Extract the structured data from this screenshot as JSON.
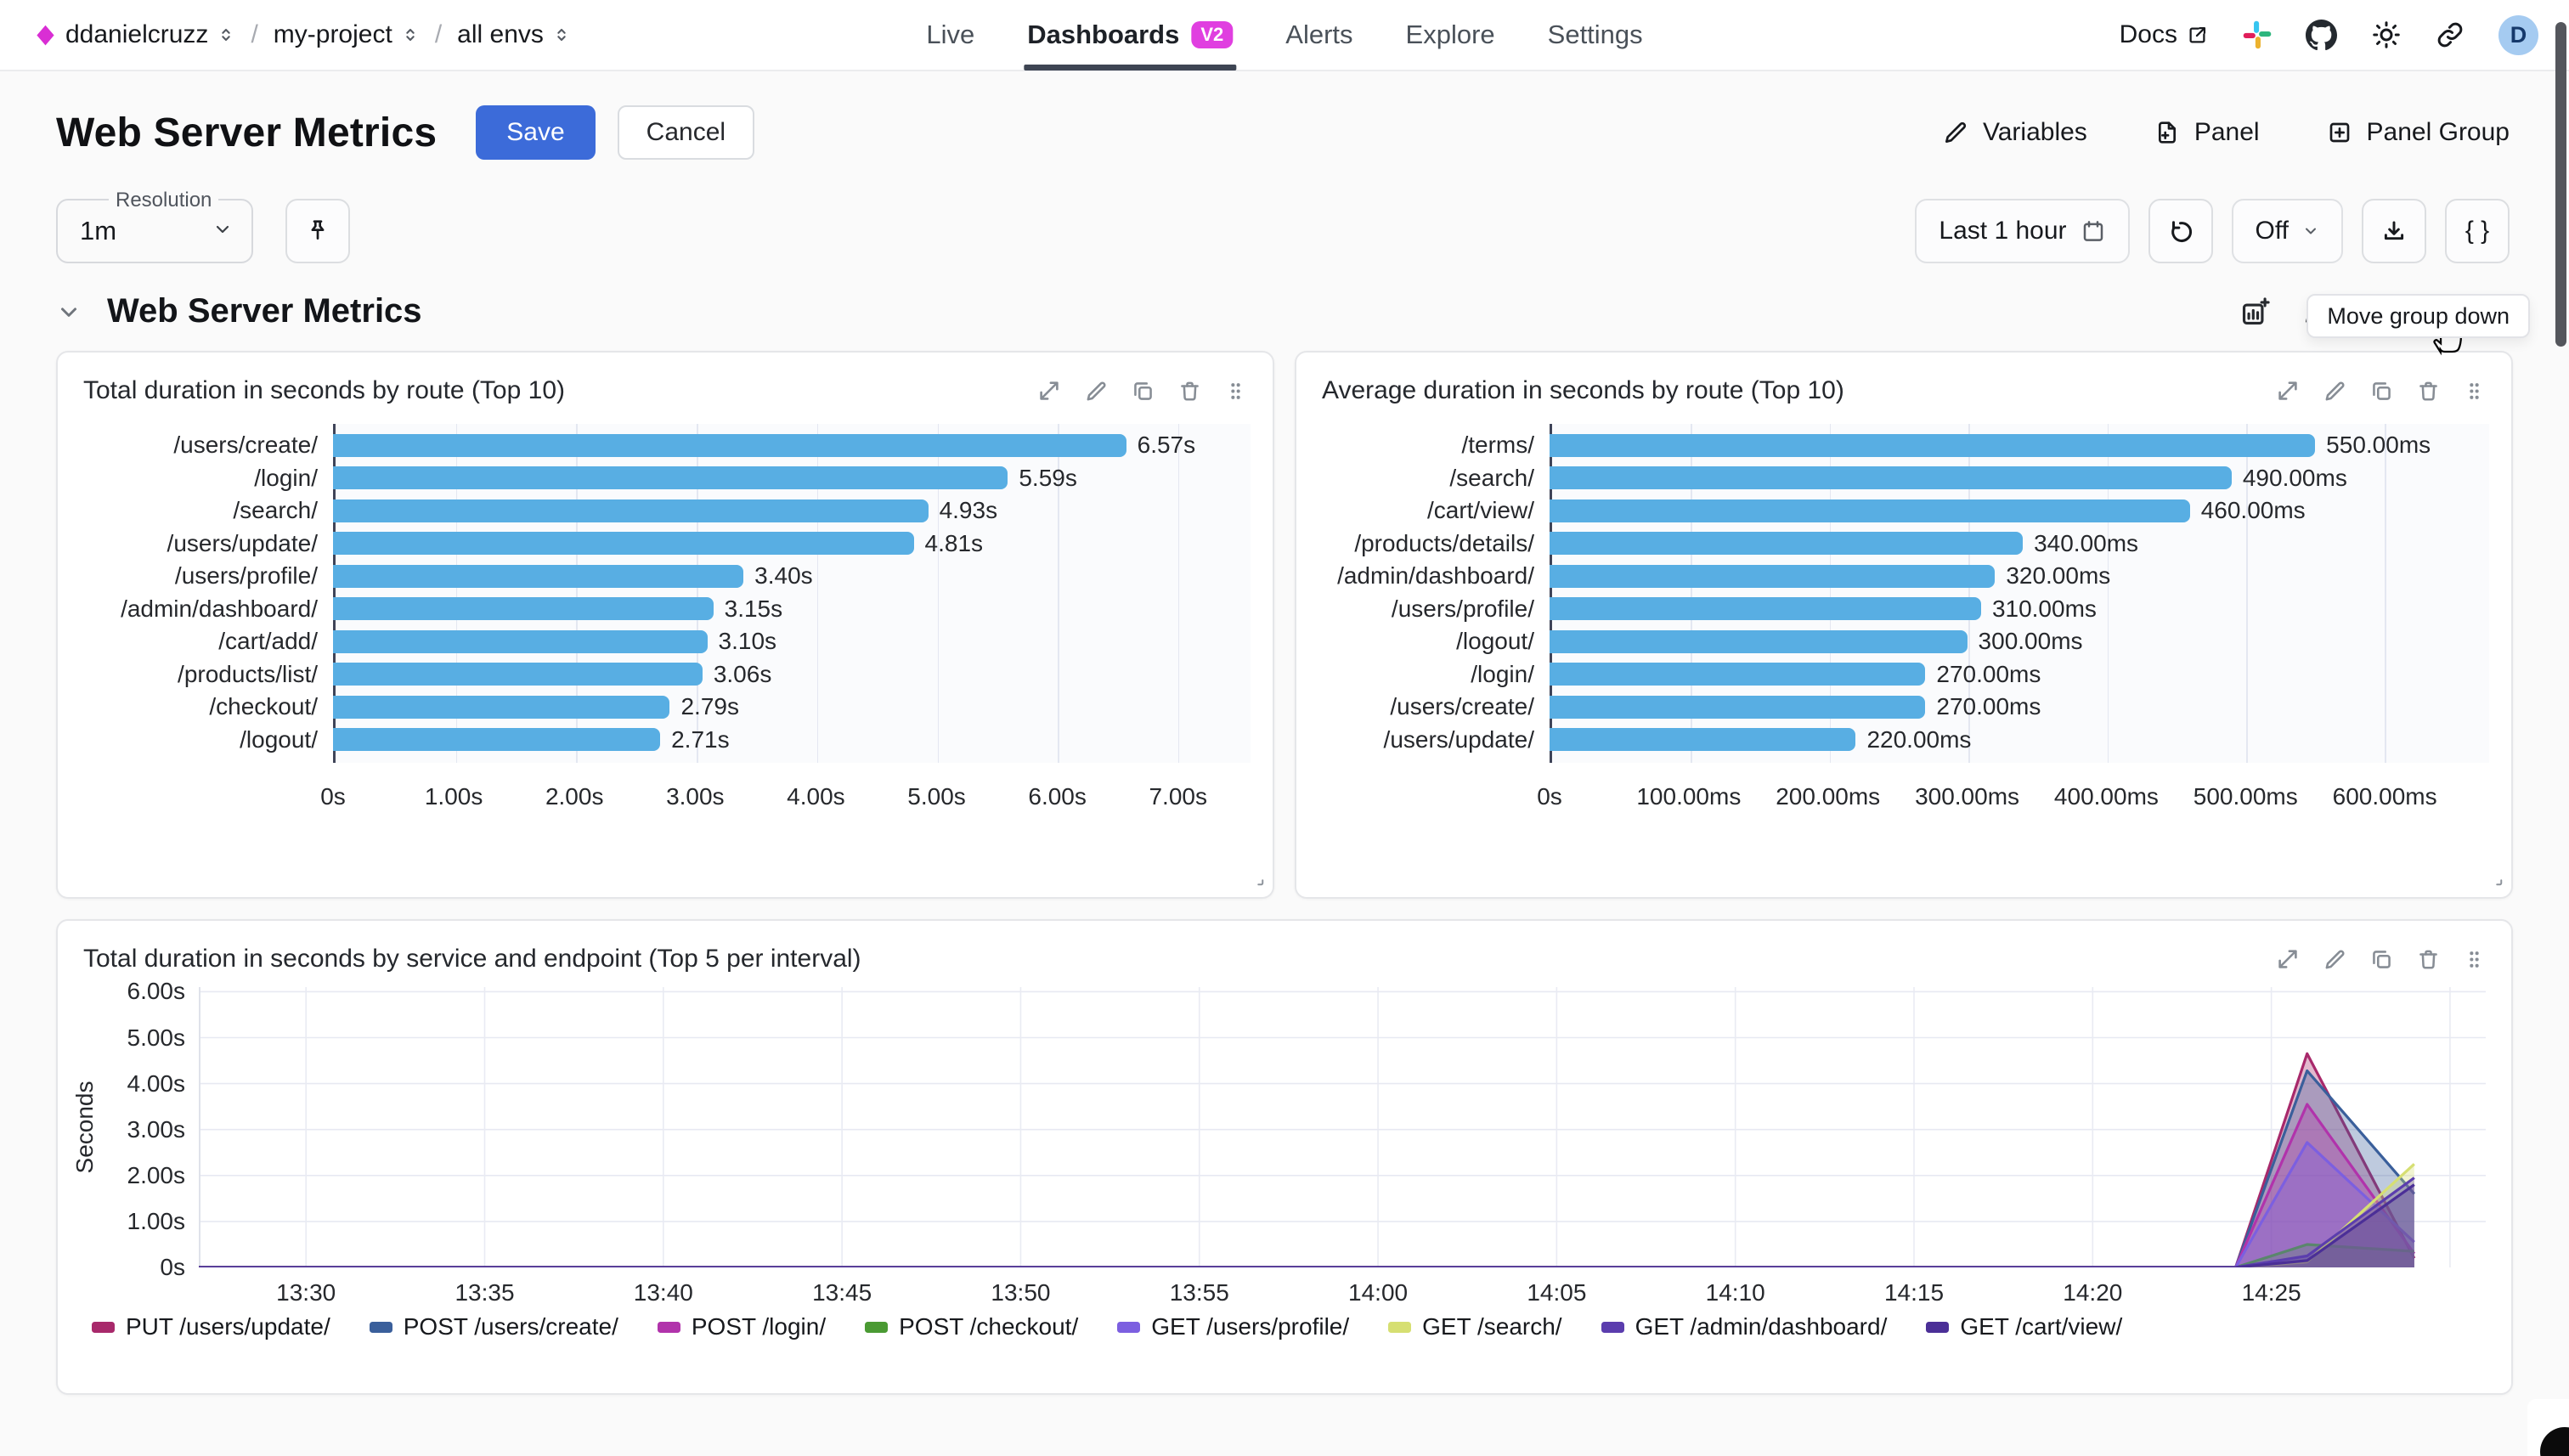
{
  "topbar": {
    "breadcrumb": [
      {
        "label": "ddanielcruzz"
      },
      {
        "label": "my-project"
      },
      {
        "label": "all envs"
      }
    ],
    "nav": [
      {
        "label": "Live",
        "active": false
      },
      {
        "label": "Dashboards",
        "active": true,
        "badge": "V2"
      },
      {
        "label": "Alerts",
        "active": false
      },
      {
        "label": "Explore",
        "active": false
      },
      {
        "label": "Settings",
        "active": false
      }
    ],
    "docs_label": "Docs",
    "avatar_initial": "D"
  },
  "header": {
    "title": "Web Server Metrics",
    "save_label": "Save",
    "cancel_label": "Cancel",
    "actions": [
      {
        "label": "Variables"
      },
      {
        "label": "Panel"
      },
      {
        "label": "Panel Group"
      }
    ]
  },
  "controls": {
    "resolution_label": "Resolution",
    "resolution_value": "1m",
    "time_range": "Last 1 hour",
    "refresh_value": "Off",
    "braces_label": "{ }",
    "tooltip": "Move group down"
  },
  "group": {
    "title": "Web Server Metrics"
  },
  "panels": [
    {
      "title": "Total duration in seconds by route (Top 10)"
    },
    {
      "title": "Average duration in seconds by route (Top 10)"
    },
    {
      "title": "Total duration in seconds by service and endpoint (Top 5 per interval)"
    }
  ],
  "colors": {
    "accent_blue": "#3c6bd9",
    "brand_magenta": "#d92ed4",
    "badge_magenta": "#e03fe0",
    "bar_blue": "#58aee3"
  },
  "chart_data": [
    {
      "type": "bar",
      "orientation": "horizontal",
      "title": "Total duration in seconds by route (Top 10)",
      "categories": [
        "/users/create/",
        "/login/",
        "/search/",
        "/users/update/",
        "/users/profile/",
        "/admin/dashboard/",
        "/cart/add/",
        "/products/list/",
        "/checkout/",
        "/logout/"
      ],
      "values": [
        6.57,
        5.59,
        4.93,
        4.81,
        3.4,
        3.15,
        3.1,
        3.06,
        2.79,
        2.71
      ],
      "value_labels": [
        "6.57s",
        "5.59s",
        "4.93s",
        "4.81s",
        "3.40s",
        "3.15s",
        "3.10s",
        "3.06s",
        "2.79s",
        "2.71s"
      ],
      "bar_color": "#58aee3",
      "axis_max": 7.6,
      "ticks": {
        "values": [
          0,
          1,
          2,
          3,
          4,
          5,
          6,
          7
        ],
        "labels": [
          "0s",
          "1.00s",
          "2.00s",
          "3.00s",
          "4.00s",
          "5.00s",
          "6.00s",
          "7.00s"
        ]
      }
    },
    {
      "type": "bar",
      "orientation": "horizontal",
      "title": "Average duration in seconds by route (Top 10)",
      "categories": [
        "/terms/",
        "/search/",
        "/cart/view/",
        "/products/details/",
        "/admin/dashboard/",
        "/users/profile/",
        "/logout/",
        "/login/",
        "/users/create/",
        "/users/update/"
      ],
      "values": [
        550,
        490,
        460,
        340,
        320,
        310,
        300,
        270,
        270,
        220
      ],
      "value_labels": [
        "550.00ms",
        "490.00ms",
        "460.00ms",
        "340.00ms",
        "320.00ms",
        "310.00ms",
        "300.00ms",
        "270.00ms",
        "270.00ms",
        "220.00ms"
      ],
      "bar_color": "#58aee3",
      "axis_max": 675,
      "ticks": {
        "values": [
          0,
          100,
          200,
          300,
          400,
          500,
          600
        ],
        "labels": [
          "0s",
          "100.00ms",
          "200.00ms",
          "300.00ms",
          "400.00ms",
          "500.00ms",
          "600.00ms"
        ]
      }
    },
    {
      "type": "area",
      "title": "Total duration in seconds by service and endpoint (Top 5 per interval)",
      "ylabel": "Seconds",
      "ymax": 6.1,
      "y_ticks": {
        "values": [
          0,
          1,
          2,
          3,
          4,
          5,
          6
        ],
        "labels": [
          "0s",
          "1.00s",
          "2.00s",
          "3.00s",
          "4.00s",
          "5.00s",
          "6.00s"
        ]
      },
      "x_domain": [
        0,
        64
      ],
      "x_ticks": {
        "values": [
          3,
          8,
          13,
          18,
          23,
          28,
          33,
          38,
          43,
          48,
          53,
          58
        ],
        "labels": [
          "13:30",
          "13:35",
          "13:40",
          "13:45",
          "13:50",
          "13:55",
          "14:00",
          "14:05",
          "14:10",
          "14:15",
          "14:20",
          "14:25"
        ]
      },
      "x_grid": [
        3,
        8,
        13,
        18,
        23,
        28,
        33,
        38,
        43,
        48,
        53,
        58,
        63
      ],
      "series": [
        {
          "name": "PUT /users/update/",
          "color": "#a8296b",
          "points": [
            [
              0,
              0
            ],
            [
              57,
              0
            ],
            [
              59,
              4.65
            ],
            [
              62,
              0.2
            ]
          ]
        },
        {
          "name": "POST /users/create/",
          "color": "#3a5f9b",
          "points": [
            [
              0,
              0
            ],
            [
              57,
              0
            ],
            [
              59,
              4.28
            ],
            [
              62,
              1.6
            ]
          ]
        },
        {
          "name": "POST /login/",
          "color": "#b133ab",
          "points": [
            [
              0,
              0
            ],
            [
              57,
              0
            ],
            [
              59,
              3.55
            ],
            [
              62,
              0.3
            ]
          ]
        },
        {
          "name": "POST /checkout/",
          "color": "#4a9a33",
          "points": [
            [
              0,
              0
            ],
            [
              57,
              0
            ],
            [
              59,
              0.5
            ],
            [
              62,
              0.35
            ]
          ]
        },
        {
          "name": "GET /users/profile/",
          "color": "#7c5fe0",
          "points": [
            [
              0,
              0
            ],
            [
              57,
              0
            ],
            [
              59,
              2.72
            ],
            [
              62,
              0.55
            ]
          ]
        },
        {
          "name": "GET /search/",
          "color": "#d6df72",
          "points": [
            [
              0,
              0
            ],
            [
              57,
              0
            ],
            [
              59,
              0.12
            ],
            [
              62,
              2.25
            ]
          ]
        },
        {
          "name": "GET /admin/dashboard/",
          "color": "#5b3dae",
          "points": [
            [
              0,
              0
            ],
            [
              57,
              0
            ],
            [
              59,
              0.25
            ],
            [
              62,
              1.95
            ]
          ]
        },
        {
          "name": "GET /cart/view/",
          "color": "#4b2f97",
          "points": [
            [
              0,
              0
            ],
            [
              57,
              0
            ],
            [
              59,
              0.15
            ],
            [
              62,
              1.8
            ]
          ]
        }
      ]
    }
  ]
}
